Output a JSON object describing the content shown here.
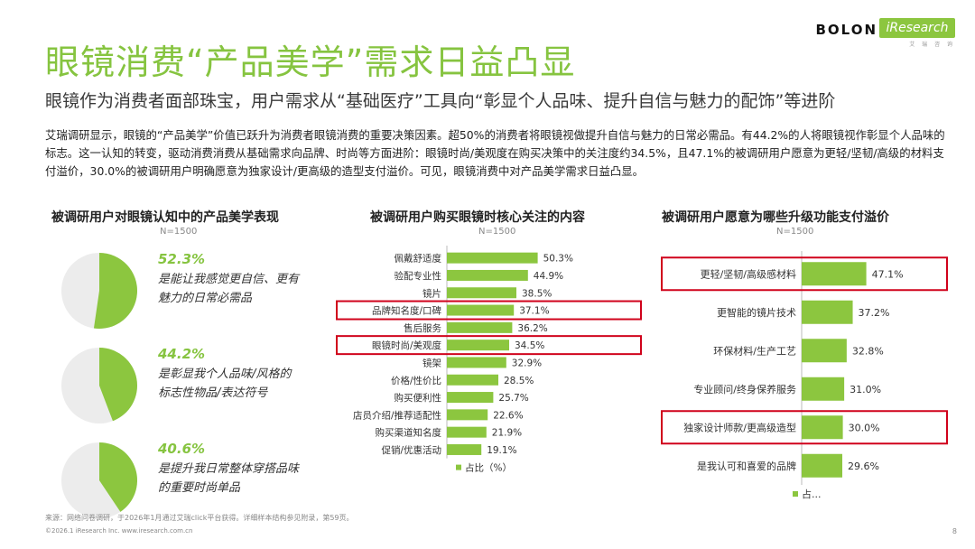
{
  "header": {
    "title": "眼镜消费“产品美学”需求日益凸显",
    "subtitle": "眼镜作为消费者面部珠宝，用户需求从“基础医疗”工具向“彰显个人品味、提升自信与魅力的配饰”等进阶",
    "intro": "艾瑞调研显示，眼镜的“产品美学”价值已跃升为消费者眼镜消费的重要决策因素。超50%的消费者将眼镜视做提升自信与魅力的日常必需品。有44.2%的人将眼镜视作彰显个人品味的标志。这一认知的转变，驱动消费消费从基础需求向品牌、时尚等方面进阶：眼镜时尚/美观度在购买决策中的关注度约34.5%，且47.1%的被调研用户愿意为更轻/坚韧/高级的材料支付溢价，30.0%的被调研用户明确愿意为独家设计/更高级的造型支付溢价。可见，眼镜消费中对产品美学需求日益凸显。"
  },
  "logo": {
    "brand": "BOLON",
    "partner": "iResearch",
    "partner_sub": "艾 瑞 咨 询"
  },
  "colors": {
    "accent": "#86c440",
    "bar": "#8cc63f",
    "pie_bg": "#ececec",
    "highlight": "#d0021b"
  },
  "panels": {
    "left": {
      "title": "被调研用户对眼镜认知中的产品美学表现",
      "n": "N=1500"
    },
    "middle": {
      "title": "被调研用户购买眼镜时核心关注的内容",
      "n": "N=1500"
    },
    "right": {
      "title": "被调研用户愿意为哪些升级功能支付溢价",
      "n": "N=1500"
    }
  },
  "chart_data": [
    {
      "type": "pie",
      "title": "被调研用户对眼镜认知中的产品美学表现",
      "n": "N=1500",
      "items": [
        {
          "value": 52.3,
          "label": "52.3%",
          "desc": "是能让我感觉更自信、更有魅力的日常必需品"
        },
        {
          "value": 44.2,
          "label": "44.2%",
          "desc": "是彰显我个人品味/风格的标志性物品/表达符号"
        },
        {
          "value": 40.6,
          "label": "40.6%",
          "desc": "是提升我日常整体穿搭品味的重要时尚单品"
        }
      ]
    },
    {
      "type": "bar",
      "orientation": "horizontal",
      "title": "被调研用户购买眼镜时核心关注的内容",
      "n": "N=1500",
      "categories": [
        "佩戴舒适度",
        "验配专业性",
        "镜片",
        "品牌知名度/口碑",
        "售后服务",
        "眼镜时尚/美观度",
        "镜架",
        "价格/性价比",
        "购买便利性",
        "店员介绍/推荐适配性",
        "购买渠道知名度",
        "促销/优惠活动"
      ],
      "values": [
        50.3,
        44.9,
        38.5,
        37.1,
        36.2,
        34.5,
        32.9,
        28.5,
        25.7,
        22.6,
        21.9,
        19.1
      ],
      "value_labels": [
        "50.3%",
        "44.9%",
        "38.5%",
        "37.1%",
        "36.2%",
        "34.5%",
        "32.9%",
        "28.5%",
        "25.7%",
        "22.6%",
        "21.9%",
        "19.1%"
      ],
      "highlighted": [
        "品牌知名度/口碑",
        "眼镜时尚/美观度"
      ],
      "legend": "占比（%）"
    },
    {
      "type": "bar",
      "orientation": "horizontal",
      "title": "被调研用户愿意为哪些升级功能支付溢价",
      "n": "N=1500",
      "categories": [
        "更轻/坚韧/高级感材料",
        "更智能的镜片技术",
        "环保材料/生产工艺",
        "专业顾问/终身保养服务",
        "独家设计师款/更高级造型",
        "是我认可和喜爱的品牌"
      ],
      "values": [
        47.1,
        37.2,
        32.8,
        31.0,
        30.0,
        29.6
      ],
      "value_labels": [
        "47.1%",
        "37.2%",
        "32.8%",
        "31.0%",
        "30.0%",
        "29.6%"
      ],
      "highlighted": [
        "更轻/坚韧/高级感材料",
        "独家设计师款/更高级造型"
      ],
      "legend": "占..."
    }
  ],
  "footer": {
    "source": "来源：网络问卷调研，于2026年1月通过艾瑞click平台获得。详细样本结构参见附录，第59页。",
    "copyright": "©2026.1 iResearch Inc. www.iresearch.com.cn",
    "page": "8"
  }
}
